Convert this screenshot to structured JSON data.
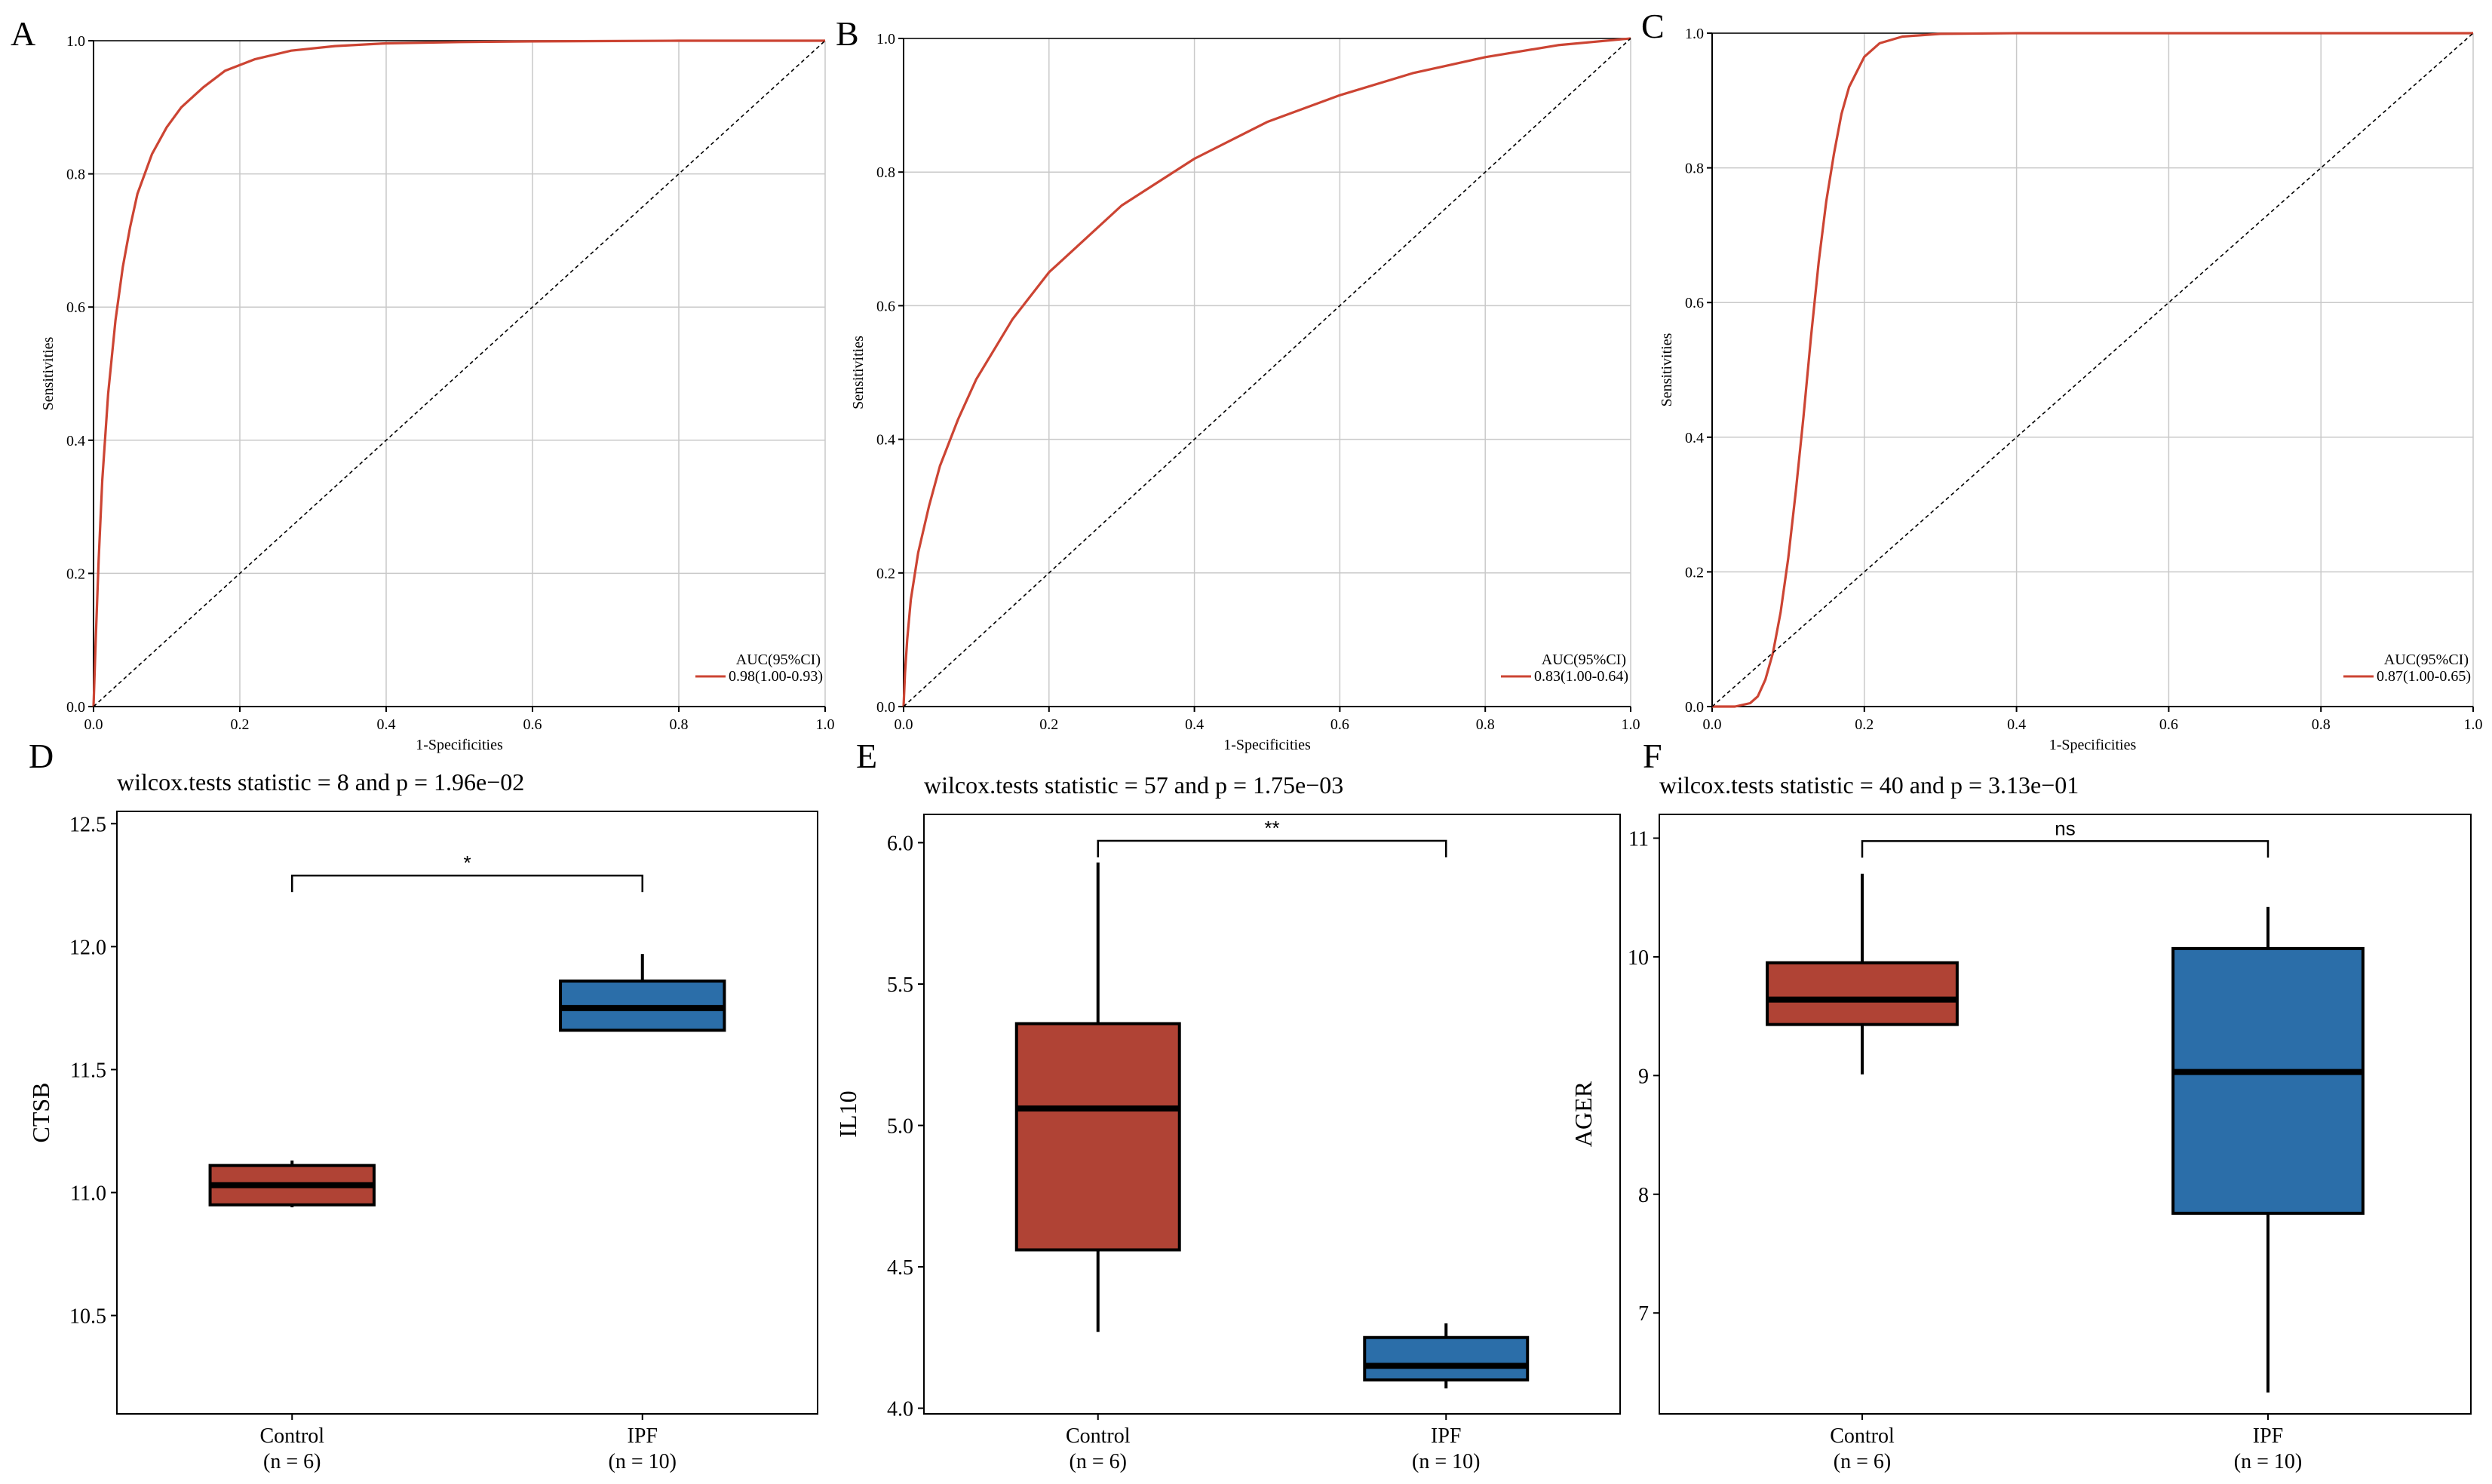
{
  "colors": {
    "roc_curve": "#cc4433",
    "control_box": "#b04335",
    "ipf_box": "#2b6ea9",
    "grid": "#c9c9c9",
    "axis": "#000000"
  },
  "chart_data": [
    {
      "panel": "A",
      "type": "line",
      "title": "",
      "xlabel": "1-Specificities",
      "ylabel": "Sensitivities",
      "xlim": [
        0,
        1
      ],
      "ylim": [
        0,
        1
      ],
      "xticks": [
        "0.0",
        "0.2",
        "0.4",
        "0.6",
        "0.8",
        "1.0"
      ],
      "yticks": [
        "0.0",
        "0.2",
        "0.4",
        "0.6",
        "0.8",
        "1.0"
      ],
      "grid": true,
      "legend_title": "AUC(95%CI)",
      "legend_position": "bottom-right",
      "series": [
        {
          "name": "0.98(1.00-0.93)",
          "x": [
            0,
            0.003,
            0.007,
            0.012,
            0.02,
            0.03,
            0.04,
            0.05,
            0.06,
            0.08,
            0.1,
            0.12,
            0.15,
            0.18,
            0.22,
            0.27,
            0.33,
            0.4,
            0.5,
            0.6,
            0.8,
            1.0
          ],
          "y": [
            0,
            0.1,
            0.22,
            0.34,
            0.47,
            0.58,
            0.66,
            0.72,
            0.77,
            0.83,
            0.87,
            0.9,
            0.93,
            0.955,
            0.972,
            0.985,
            0.992,
            0.996,
            0.998,
            0.999,
            1.0,
            1.0
          ]
        },
        {
          "name": "chance",
          "x": [
            0,
            1
          ],
          "y": [
            0,
            1
          ]
        }
      ]
    },
    {
      "panel": "B",
      "type": "line",
      "title": "",
      "xlabel": "1-Specificities",
      "ylabel": "Sensitivities",
      "xlim": [
        0,
        1
      ],
      "ylim": [
        0,
        1
      ],
      "xticks": [
        "0.0",
        "0.2",
        "0.4",
        "0.6",
        "0.8",
        "1.0"
      ],
      "yticks": [
        "0.0",
        "0.2",
        "0.4",
        "0.6",
        "0.8",
        "1.0"
      ],
      "grid": true,
      "legend_title": "AUC(95%CI)",
      "legend_position": "bottom-right",
      "series": [
        {
          "name": "0.83(1.00-0.64)",
          "x": [
            0,
            0.002,
            0.005,
            0.01,
            0.02,
            0.035,
            0.05,
            0.075,
            0.1,
            0.15,
            0.2,
            0.25,
            0.3,
            0.4,
            0.5,
            0.6,
            0.7,
            0.8,
            0.9,
            1.0
          ],
          "y": [
            0,
            0.05,
            0.1,
            0.16,
            0.23,
            0.3,
            0.36,
            0.43,
            0.49,
            0.58,
            0.65,
            0.7,
            0.75,
            0.82,
            0.875,
            0.915,
            0.948,
            0.972,
            0.99,
            1.0
          ]
        },
        {
          "name": "chance",
          "x": [
            0,
            1
          ],
          "y": [
            0,
            1
          ]
        }
      ]
    },
    {
      "panel": "C",
      "type": "line",
      "title": "",
      "xlabel": "1-Specificities",
      "ylabel": "Sensitivities",
      "xlim": [
        0,
        1
      ],
      "ylim": [
        0,
        1
      ],
      "xticks": [
        "0.0",
        "0.2",
        "0.4",
        "0.6",
        "0.8",
        "1.0"
      ],
      "yticks": [
        "0.0",
        "0.2",
        "0.4",
        "0.6",
        "0.8",
        "1.0"
      ],
      "grid": true,
      "legend_title": "AUC(95%CI)",
      "legend_position": "bottom-right",
      "series": [
        {
          "name": "0.87(1.00-0.65)",
          "x": [
            0,
            0.03,
            0.05,
            0.06,
            0.07,
            0.08,
            0.09,
            0.1,
            0.11,
            0.12,
            0.13,
            0.14,
            0.15,
            0.16,
            0.17,
            0.18,
            0.2,
            0.22,
            0.25,
            0.3,
            0.4,
            0.6,
            1.0
          ],
          "y": [
            0,
            0.0,
            0.005,
            0.015,
            0.04,
            0.08,
            0.14,
            0.22,
            0.32,
            0.43,
            0.55,
            0.66,
            0.75,
            0.82,
            0.88,
            0.92,
            0.965,
            0.985,
            0.995,
            0.999,
            1.0,
            1.0,
            1.0
          ]
        },
        {
          "name": "chance",
          "x": [
            0,
            1
          ],
          "y": [
            0,
            1
          ]
        }
      ]
    },
    {
      "panel": "D",
      "type": "box",
      "title": "wilcox.tests statistic = 8 and p = 1.96e−02",
      "xlabel": "",
      "ylabel": "CTSB",
      "ylim": [
        10.1,
        12.55
      ],
      "yticks": [
        10.5,
        11.0,
        11.5,
        12.0,
        12.5
      ],
      "ytick_labels": [
        "10.5",
        "11.0",
        "11.5",
        "12.0",
        "12.5"
      ],
      "significance": "*",
      "groups": [
        {
          "name": "Control",
          "n": "(n = 6)",
          "min": 10.94,
          "q1": 10.95,
          "median": 11.03,
          "q3": 11.11,
          "max": 11.13
        },
        {
          "name": "IPF",
          "n": "(n = 10)",
          "min": 11.66,
          "q1": 11.66,
          "median": 11.75,
          "q3": 11.86,
          "max": 11.97
        }
      ]
    },
    {
      "panel": "E",
      "type": "box",
      "title": "wilcox.tests statistic = 57 and p = 1.75e−03",
      "xlabel": "",
      "ylabel": "IL10",
      "ylim": [
        3.98,
        6.1
      ],
      "yticks": [
        4.0,
        4.5,
        5.0,
        5.5,
        6.0
      ],
      "ytick_labels": [
        "4.0",
        "4.5",
        "5.0",
        "5.5",
        "6.0"
      ],
      "significance": "**",
      "groups": [
        {
          "name": "Control",
          "n": "(n = 6)",
          "min": 4.27,
          "q1": 4.56,
          "median": 5.06,
          "q3": 5.36,
          "max": 5.93
        },
        {
          "name": "IPF",
          "n": "(n = 10)",
          "min": 4.07,
          "q1": 4.1,
          "median": 4.15,
          "q3": 4.25,
          "max": 4.3
        }
      ]
    },
    {
      "panel": "F",
      "type": "box",
      "title": "wilcox.tests statistic = 40 and p = 3.13e−01",
      "xlabel": "",
      "ylabel": "AGER",
      "ylim": [
        6.15,
        11.2
      ],
      "yticks": [
        7,
        8,
        9,
        10,
        11
      ],
      "ytick_labels": [
        "7",
        "8",
        "9",
        "10",
        "11"
      ],
      "significance": "ns",
      "groups": [
        {
          "name": "Control",
          "n": "(n = 6)",
          "min": 9.01,
          "q1": 9.43,
          "median": 9.64,
          "q3": 9.95,
          "max": 10.7
        },
        {
          "name": "IPF",
          "n": "(n = 10)",
          "min": 6.33,
          "q1": 7.84,
          "median": 9.03,
          "q3": 10.07,
          "max": 10.42
        }
      ]
    }
  ]
}
